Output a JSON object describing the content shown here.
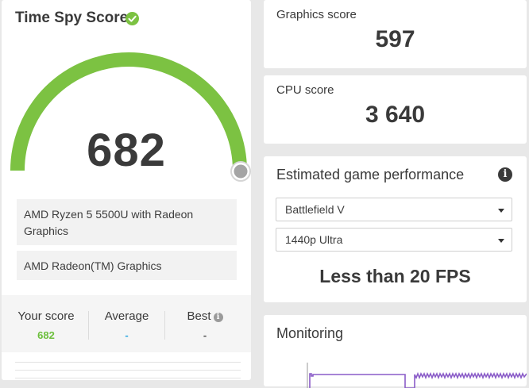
{
  "score_card": {
    "title": "Time Spy Score",
    "score": "682",
    "cpu_name": "AMD Ryzen 5 5500U with Radeon Graphics",
    "gpu_name": "AMD Radeon(TM) Graphics",
    "gauge_level": 0.97,
    "compare": {
      "your_score_label": "Your score",
      "your_score_value": "682",
      "average_label": "Average",
      "average_value": "-",
      "best_label": "Best",
      "best_value": "-"
    }
  },
  "graphics": {
    "label": "Graphics score",
    "value": "597"
  },
  "cpu": {
    "label": "CPU score",
    "value": "3 640"
  },
  "performance": {
    "title": "Estimated game performance",
    "game_selected": "Battlefield V",
    "quality_selected": "1440p Ultra",
    "result": "Less than 20 FPS"
  },
  "monitoring": {
    "title": "Monitoring"
  },
  "colors": {
    "accent_green": "#7cc242",
    "score_green": "#6cbf3c",
    "average_blue": "#2aa7e0",
    "monitor_purple": "#8a5cc8"
  },
  "icons": {
    "title_check": "check-circle-icon",
    "performance_info": "info-icon",
    "best_info": "info-icon",
    "select_caret": "caret-down-icon"
  }
}
